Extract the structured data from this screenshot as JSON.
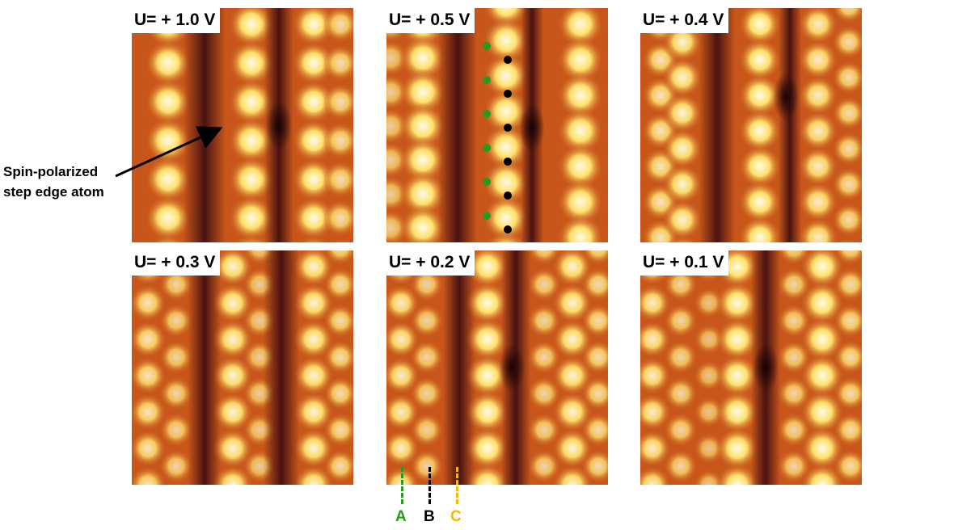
{
  "panels": [
    {
      "label": "U= + 1.0 V"
    },
    {
      "label": "U= + 0.5 V"
    },
    {
      "label": "U= + 0.4 V"
    },
    {
      "label": "U= + 0.3 V"
    },
    {
      "label": "U= + 0.2 V"
    },
    {
      "label": "U= + 0.1 V"
    }
  ],
  "annotation": {
    "line1": "Spin-polarized",
    "line2": "step edge atom"
  },
  "legend": [
    {
      "label": "A",
      "color": "#2a9a1f"
    },
    {
      "label": "B",
      "color": "#000000"
    },
    {
      "label": "C",
      "color": "#f5b800"
    }
  ],
  "colors": {
    "dark": "#3a0a10",
    "mid": "#c8561a",
    "bright": "#ffe06a",
    "peak": "#fffbe8"
  }
}
